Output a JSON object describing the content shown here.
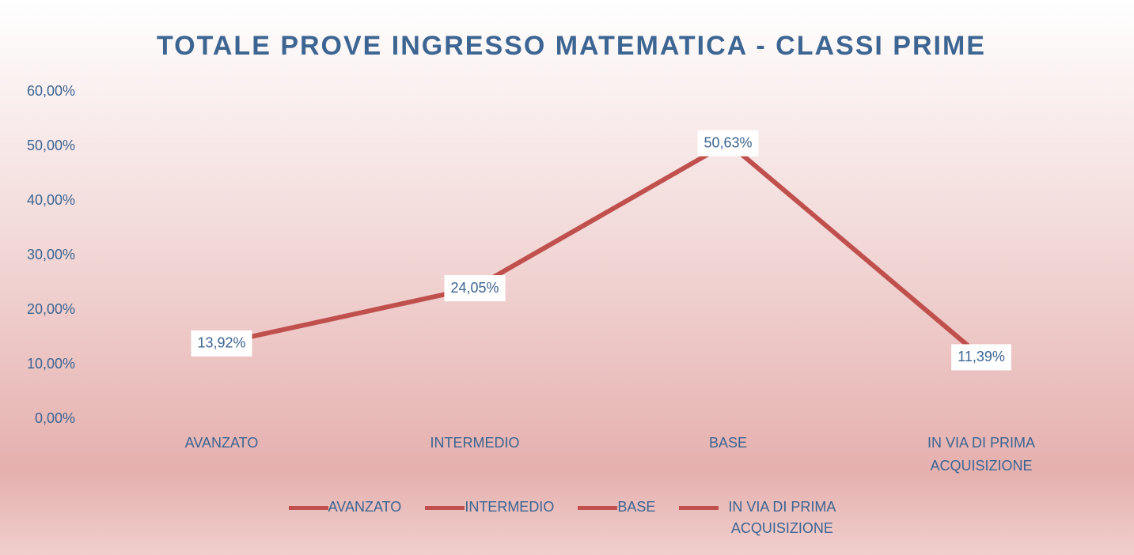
{
  "chart_data": {
    "type": "line",
    "title": "TOTALE PROVE INGRESSO MATEMATICA - CLASSI  PRIME",
    "categories": [
      "AVANZATO",
      "INTERMEDIO",
      "BASE",
      "IN VIA DI PRIMA ACQUISIZIONE"
    ],
    "series": [
      {
        "color": "#c0504d",
        "values": [
          13.92,
          24.05,
          50.63,
          11.39
        ],
        "value_labels": [
          "13,92%",
          "24,05%",
          "50,63%",
          "11,39%"
        ]
      }
    ],
    "ylim": [
      0,
      60
    ],
    "yticks": [
      {
        "value": 0,
        "label": "0,00%"
      },
      {
        "value": 10,
        "label": "10,00%"
      },
      {
        "value": 20,
        "label": "20,00%"
      },
      {
        "value": 30,
        "label": "30,00%"
      },
      {
        "value": 40,
        "label": "40,00%"
      },
      {
        "value": 50,
        "label": "50,00%"
      },
      {
        "value": 60,
        "label": "60,00%"
      }
    ],
    "grid": false,
    "legend": "bottom",
    "legend_entries": [
      "AVANZATO",
      "INTERMEDIO",
      "BASE",
      "IN VIA DI PRIMA ACQUISIZIONE"
    ]
  }
}
